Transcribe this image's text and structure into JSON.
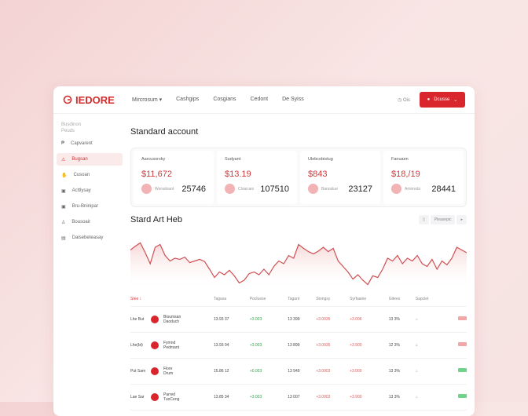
{
  "header": {
    "logo": "IEDORE",
    "nav": [
      "Mircrosum ▾",
      "Cashgips",
      "Cosgians",
      "Cedont",
      "De Syiss"
    ],
    "right_text": "Ois",
    "cta_label": "Dcusse"
  },
  "sidebar": {
    "caption_1": "Busdinon",
    "caption_2": "Peuds",
    "items": [
      {
        "label": "Capvarent",
        "icon": "dollar-icon"
      },
      {
        "label": "Bugsan",
        "icon": "alert-icon",
        "active": true
      },
      {
        "label": "Cusoan",
        "icon": "hand-icon"
      },
      {
        "label": "Acttlysay",
        "icon": "document-icon"
      },
      {
        "label": "Bru-Bninipar",
        "icon": "document-icon"
      },
      {
        "label": "Bousoair",
        "icon": "user-icon"
      },
      {
        "label": "Daisebeteasay",
        "icon": "book-icon"
      }
    ]
  },
  "main": {
    "title": "Standard account",
    "stats": [
      {
        "label": "Aarcusorsky",
        "amount": "$11,672",
        "sub": "Weradoant",
        "value": "25746"
      },
      {
        "label": "Sudyant",
        "amount": "$13.19",
        "sub": "Cloarues",
        "value": "107510"
      },
      {
        "label": "Ulebcobistug",
        "amount": "$843",
        "sub": "Banoslue",
        "value": "23127"
      },
      {
        "label": "Fanuaen",
        "amount": "$18,/19",
        "sub": "Amirreds",
        "value": "28441"
      }
    ],
    "chart_title": "Stard Art Heb",
    "chart_control": "Pleasepic",
    "table": {
      "headers": [
        "Stee ↕",
        "",
        "Tagasa",
        "Pocluese",
        "Tagant",
        "Stongsy",
        "Syrfaaine",
        "Gitees",
        "Sapclet",
        ""
      ],
      "rows": [
        {
          "c1": "Lhe But",
          "name1": "Bioumsan",
          "name2": "Daoduch",
          "v1": "13.93 37",
          "v2": "+3.003",
          "v3": "13 399",
          "v4": "+3.0035",
          "v5": "+3.006",
          "v6": "13 3%",
          "lock": "gray",
          "tag": "red"
        },
        {
          "c1": "Lhe(bt)",
          "name1": "Fymnd",
          "name2": "Pedmant",
          "v1": "13.93 04",
          "v2": "+3.003",
          "v3": "13 899",
          "v4": "+3.0035",
          "v5": "+3.900",
          "v6": "12 3%",
          "lock": "green",
          "tag": "red"
        },
        {
          "c1": "Put Sam",
          "name1": "Flore",
          "name2": "Drum",
          "v1": "15.86 12",
          "v2": "+0.003",
          "v3": "13 949",
          "v4": "+3.0003",
          "v5": "+3.000",
          "v6": "13 3%",
          "lock": "gray",
          "tag": "green"
        },
        {
          "c1": "Lae Sar",
          "name1": "Parred",
          "name2": "TuoCeng",
          "v1": "13.85 34",
          "v2": "+3.003",
          "v3": "13 007",
          "v4": "+3.0003",
          "v5": "+3.900",
          "v6": "13 3%",
          "lock": "gray",
          "tag": "green"
        }
      ]
    }
  },
  "colors": {
    "accent": "#d8262c",
    "positive": "#2aa845",
    "negative": "#e05a5a"
  },
  "chart_data": {
    "type": "area",
    "values": [
      65,
      72,
      78,
      60,
      40,
      70,
      75,
      55,
      45,
      50,
      48,
      52,
      42,
      45,
      48,
      44,
      30,
      15,
      25,
      20,
      28,
      18,
      5,
      10,
      22,
      25,
      20,
      30,
      20,
      35,
      45,
      40,
      55,
      50,
      75,
      68,
      62,
      58,
      63,
      70,
      62,
      68,
      45,
      35,
      25,
      12,
      20,
      10,
      2,
      18,
      15,
      30,
      50,
      45,
      55,
      40,
      50,
      45,
      55,
      40,
      35,
      48,
      30,
      45,
      38,
      50,
      70,
      65,
      60
    ],
    "ylim": [
      0,
      100
    ]
  }
}
